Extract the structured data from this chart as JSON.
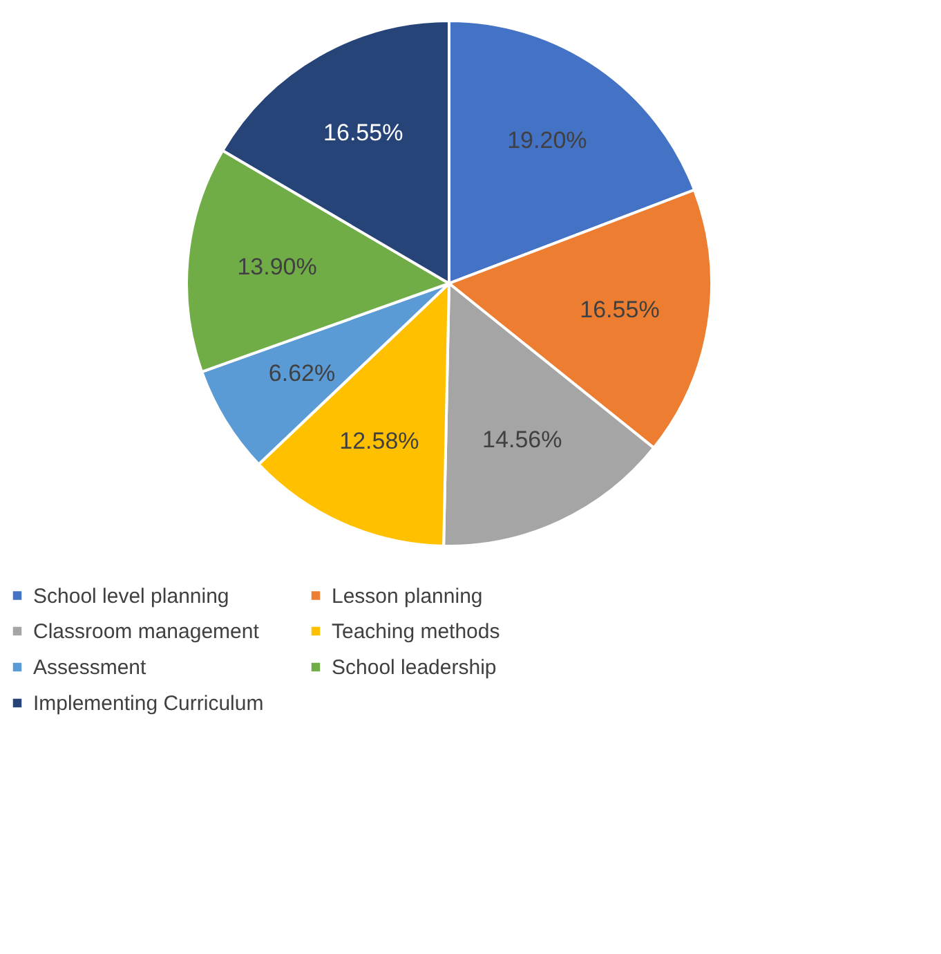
{
  "chart_data": {
    "type": "pie",
    "categories": [
      "School level planning",
      "Lesson planning",
      "Classroom management",
      "Teaching methods",
      "Assessment",
      "School leadership",
      "Implementing Curriculum"
    ],
    "values": [
      19.2,
      16.55,
      14.56,
      12.58,
      6.62,
      13.9,
      16.55
    ],
    "colors": [
      "#4472c4",
      "#ed7d31",
      "#a5a5a5",
      "#ffc000",
      "#5b9bd5",
      "#70ad47",
      "#264478"
    ],
    "value_labels": [
      "19.20%",
      "16.55%",
      "14.56%",
      "12.58%",
      "6.62%",
      "13.90%",
      "16.55%"
    ],
    "legend": "bottom"
  }
}
